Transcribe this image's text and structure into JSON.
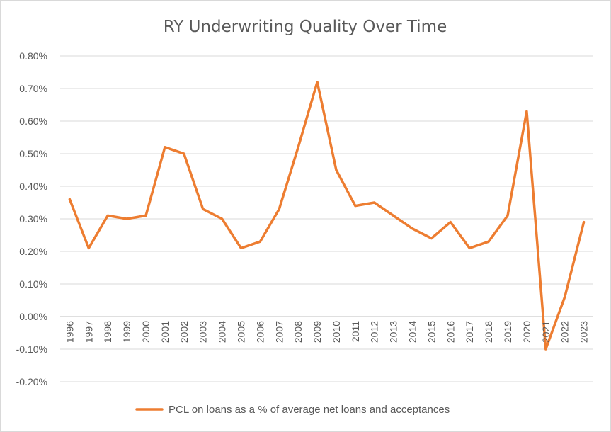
{
  "chart_data": {
    "type": "line",
    "title": "RY Underwriting Quality Over Time",
    "xlabel": "",
    "ylabel": "",
    "ylim": [
      -0.2,
      0.8
    ],
    "y_ticks": [
      -0.2,
      -0.1,
      0.0,
      0.1,
      0.2,
      0.3,
      0.4,
      0.5,
      0.6,
      0.7,
      0.8
    ],
    "y_tick_labels": [
      "-0.20%",
      "-0.10%",
      "0.00%",
      "0.10%",
      "0.20%",
      "0.30%",
      "0.40%",
      "0.50%",
      "0.60%",
      "0.70%",
      "0.80%"
    ],
    "grid": true,
    "legend_position": "bottom",
    "categories": [
      "1996",
      "1997",
      "1998",
      "1999",
      "2000",
      "2001",
      "2002",
      "2003",
      "2004",
      "2005",
      "2006",
      "2007",
      "2008",
      "2009",
      "2010",
      "2011",
      "2012",
      "2013",
      "2014",
      "2015",
      "2016",
      "2017",
      "2018",
      "2019",
      "2020",
      "2021",
      "2022",
      "2023"
    ],
    "series": [
      {
        "name": "PCL on loans as a % of average net loans and acceptances",
        "color": "#ed7d31",
        "values": [
          0.36,
          0.21,
          0.31,
          0.3,
          0.31,
          0.52,
          0.5,
          0.33,
          0.3,
          0.21,
          0.23,
          0.33,
          0.52,
          0.72,
          0.45,
          0.34,
          0.35,
          0.31,
          0.27,
          0.24,
          0.29,
          0.21,
          0.23,
          0.31,
          0.63,
          -0.1,
          0.06,
          0.29
        ]
      }
    ]
  }
}
